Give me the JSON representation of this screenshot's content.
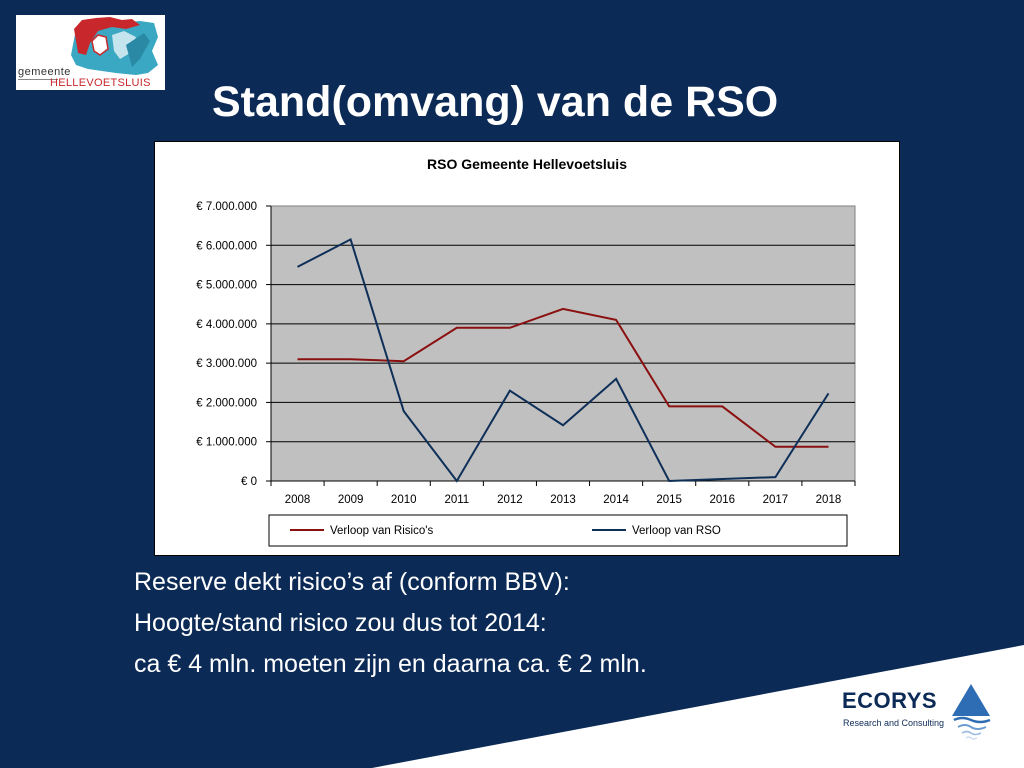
{
  "slide": {
    "title": "Stand(omvang) van de RSO",
    "logo_text_top": "gemeente",
    "logo_text_bottom": "HELLEVOETSLUIS",
    "body_lines": [
      "Reserve dekt risico’s af (conform BBV):",
      "Hoogte/stand risico zou dus tot 2014:",
      "ca € 4 mln. moeten zijn en daarna ca. € 2 mln."
    ],
    "ecorys_name": "ECORYS",
    "ecorys_tagline": "Research and Consulting"
  },
  "chart_data": {
    "type": "line",
    "title": "RSO Gemeente Hellevoetsluis",
    "xlabel": "",
    "ylabel": "",
    "categories": [
      "2008",
      "2009",
      "2010",
      "2011",
      "2012",
      "2013",
      "2014",
      "2015",
      "2016",
      "2017",
      "2018"
    ],
    "ylim": [
      0,
      7000000
    ],
    "yticks": [
      0,
      1000000,
      2000000,
      3000000,
      4000000,
      5000000,
      6000000,
      7000000
    ],
    "ytick_labels": [
      "€ 0",
      "€ 1.000.000",
      "€ 2.000.000",
      "€ 3.000.000",
      "€ 4.000.000",
      "€ 5.000.000",
      "€ 6.000.000",
      "€ 7.000.000"
    ],
    "grid": true,
    "legend_position": "bottom",
    "series": [
      {
        "name": "Verloop van Risico's",
        "color": "#8b1010",
        "values": [
          3100000,
          3100000,
          3050000,
          3900000,
          3900000,
          4380000,
          4100000,
          1900000,
          1900000,
          870000,
          870000
        ]
      },
      {
        "name": "Verloop van RSO",
        "color": "#0e2f58",
        "values": [
          5450000,
          6150000,
          1780000,
          0,
          2300000,
          1420000,
          2600000,
          0,
          50000,
          100000,
          2230000
        ]
      }
    ]
  }
}
